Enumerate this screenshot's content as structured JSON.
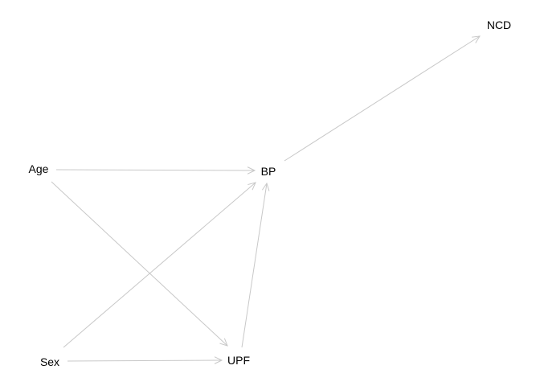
{
  "diagram": {
    "nodes": [
      {
        "id": "ncd",
        "label": "NCD"
      },
      {
        "id": "age",
        "label": "Age"
      },
      {
        "id": "bp",
        "label": "BP"
      },
      {
        "id": "sex",
        "label": "Sex"
      },
      {
        "id": "upf",
        "label": "UPF"
      }
    ],
    "edges": [
      {
        "from": "bp",
        "to": "ncd"
      },
      {
        "from": "age",
        "to": "bp"
      },
      {
        "from": "age",
        "to": "upf"
      },
      {
        "from": "sex",
        "to": "bp"
      },
      {
        "from": "sex",
        "to": "upf"
      },
      {
        "from": "upf",
        "to": "bp"
      }
    ],
    "edge_color": "#c8c8c8",
    "label_color": "#000000"
  }
}
